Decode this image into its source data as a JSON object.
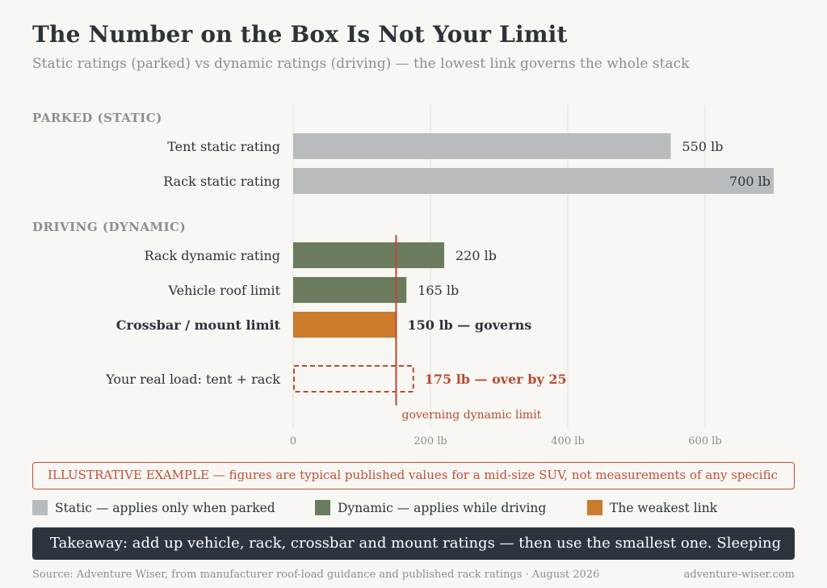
{
  "header": {
    "title": "The Number on the Box Is Not Your Limit",
    "subtitle": "Static ratings (parked) vs dynamic ratings (driving) — the lowest link governs the whole stack"
  },
  "chart_data": {
    "type": "bar",
    "orientation": "horizontal",
    "xlim": [
      0,
      700
    ],
    "x_ticks": [
      {
        "value": 0,
        "label": "0"
      },
      {
        "value": 200,
        "label": "200 lb"
      },
      {
        "value": 400,
        "label": "400 lb"
      },
      {
        "value": 600,
        "label": "600 lb"
      }
    ],
    "grid": true,
    "groups": [
      {
        "label": "PARKED (STATIC)",
        "bars": [
          {
            "category": "Tent static rating",
            "value": 550,
            "value_label": "550 lb",
            "kind": "static"
          },
          {
            "category": "Rack static rating",
            "value": 700,
            "value_label": "700 lb",
            "kind": "static"
          }
        ]
      },
      {
        "label": "DRIVING (DYNAMIC)",
        "bars": [
          {
            "category": "Rack dynamic rating",
            "value": 220,
            "value_label": "220 lb",
            "kind": "dynamic"
          },
          {
            "category": "Vehicle roof limit",
            "value": 165,
            "value_label": "165 lb",
            "kind": "dynamic"
          },
          {
            "category": "Crossbar / mount limit",
            "value": 150,
            "value_label": "150 lb — governs",
            "kind": "weakest"
          }
        ]
      }
    ],
    "load": {
      "category": "Your real load: tent + rack",
      "value": 175,
      "value_label": "175 lb — over by 25"
    },
    "reference_line": {
      "value": 150,
      "label": "governing dynamic limit"
    },
    "colors": {
      "static": "#b8bcbe",
      "dynamic": "#6b7c5e",
      "weakest": "#cc7a2c",
      "alert": "#b84a34",
      "grid": "#e1e2de",
      "text": "#2c333a",
      "muted": "#8a8f93"
    }
  },
  "notice": "ILLUSTRATIVE EXAMPLE — figures are typical published values for a mid-size SUV, not measurements of any specific",
  "legend": [
    {
      "label": "Static — applies only when parked",
      "color": "#b8bcbe"
    },
    {
      "label": "Dynamic — applies while driving",
      "color": "#6b7c5e"
    },
    {
      "label": "The weakest link",
      "color": "#cc7a2c"
    }
  ],
  "takeaway": "Takeaway: add up vehicle, rack, crossbar and mount ratings — then use the smallest one. Sleeping",
  "footer": {
    "source": "Source: Adventure Wiser, from manufacturer roof-load guidance and published rack ratings · August 2026",
    "site": "adventure-wiser.com"
  }
}
